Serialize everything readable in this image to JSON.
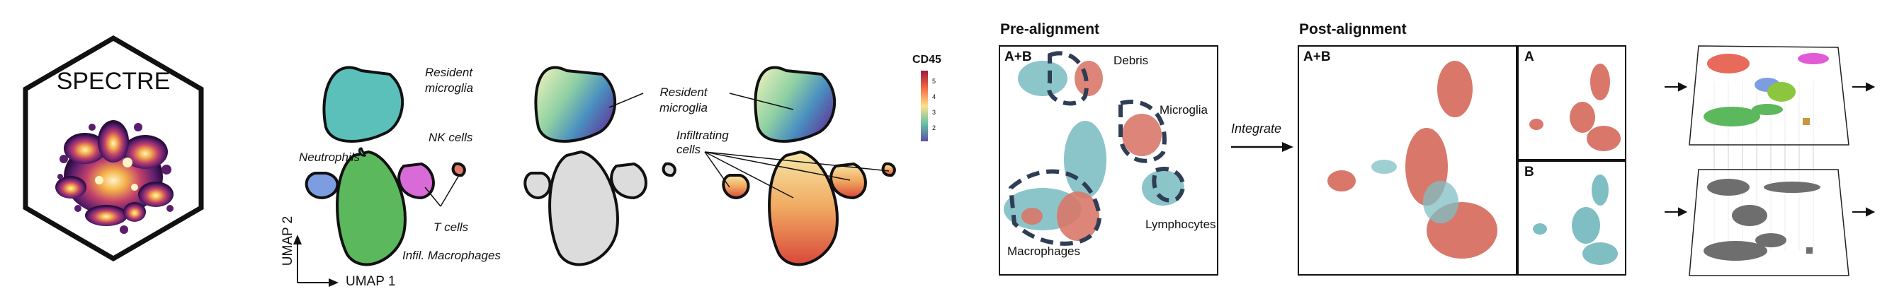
{
  "logo": {
    "text": "SPECTRE"
  },
  "umap_panel": {
    "x_axis": "UMAP 1",
    "y_axis": "UMAP 2",
    "labels": {
      "resident": "Resident microglia",
      "nk": "NK cells",
      "neutrophils": "Neutrophils",
      "tcells": "T cells",
      "macrophages": "Infil. Macrophages"
    }
  },
  "heatmap_panel": {
    "legend_title": "CD45",
    "legend_ticks": [
      "5",
      "4",
      "3",
      "2"
    ],
    "labels": {
      "resident": "Resident microglia",
      "infiltrating": "Infiltrating cells"
    }
  },
  "pre_alignment": {
    "title": "Pre-alignment",
    "sample_label": "A+B",
    "labels": {
      "debris": "Debris",
      "microglia": "Microglia",
      "lymphocytes": "Lymphocytes",
      "macrophages": "Macrophages"
    }
  },
  "integrate_label": "Integrate",
  "post_alignment": {
    "title": "Post-alignment",
    "main_label": "A+B",
    "a_label": "A",
    "b_label": "B"
  },
  "colors": {
    "sample_a": "#d9786a",
    "sample_b": "#7fbfc4",
    "microglia": "#5bbfba",
    "macrophage": "#5cb85c",
    "neutrophil": "#7c9ee0",
    "tcell": "#d96bd9",
    "logo_glow": "#f5b34a",
    "logo_dark": "#5a1d6e"
  }
}
